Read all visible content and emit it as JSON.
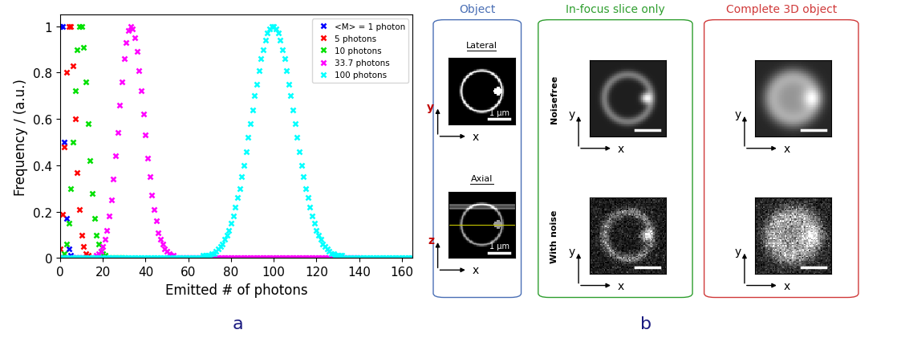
{
  "chart_data": {
    "type": "scatter",
    "x_label": "Emitted # of photons",
    "y_label": "Frequency / (a.u.)",
    "xlim": [
      0,
      165
    ],
    "xticks": [
      0,
      20,
      40,
      60,
      80,
      100,
      120,
      140,
      160
    ],
    "ylim": [
      0,
      1.05
    ],
    "yticks": [
      0,
      0.2,
      0.4,
      0.6,
      0.8,
      1
    ],
    "legend": "upper right",
    "marker": "x",
    "series": [
      {
        "name": "<M> = 1 photon",
        "color": "#0000ff",
        "x": [
          0,
          1,
          2,
          3,
          4,
          5,
          6,
          7,
          8,
          9,
          10
        ],
        "values": [
          1,
          1,
          0.5,
          0.17,
          0.04,
          0.01,
          0,
          0,
          0,
          0,
          0
        ]
      },
      {
        "name": "5 photons",
        "color": "#ff0000",
        "x": [
          0,
          1,
          2,
          3,
          4,
          5,
          6,
          7,
          8,
          9,
          10,
          11,
          12,
          13,
          14,
          15,
          16,
          17,
          18,
          19,
          20
        ],
        "values": [
          0.04,
          0.19,
          0.48,
          0.8,
          1,
          1,
          0.83,
          0.6,
          0.37,
          0.21,
          0.1,
          0.05,
          0.02,
          0.01,
          0,
          0,
          0,
          0,
          0,
          0,
          0
        ]
      },
      {
        "name": "10 photons",
        "color": "#00e000",
        "x": [
          0,
          1,
          2,
          3,
          4,
          5,
          6,
          7,
          8,
          9,
          10,
          11,
          12,
          13,
          14,
          15,
          16,
          17,
          18,
          19,
          20,
          21,
          22,
          23,
          24,
          25,
          26,
          27,
          28,
          29,
          30
        ],
        "values": [
          0,
          0,
          0.02,
          0.06,
          0.15,
          0.3,
          0.5,
          0.72,
          0.9,
          1,
          1,
          0.91,
          0.76,
          0.58,
          0.42,
          0.28,
          0.17,
          0.1,
          0.06,
          0.03,
          0.02,
          0.01,
          0,
          0,
          0,
          0,
          0,
          0,
          0,
          0,
          0
        ]
      },
      {
        "name": "33.7 photons",
        "color": "#ff00ff",
        "x": [
          0,
          1,
          2,
          3,
          4,
          5,
          6,
          7,
          8,
          9,
          10,
          11,
          12,
          13,
          14,
          15,
          16,
          17,
          18,
          19,
          20,
          21,
          22,
          23,
          24,
          25,
          26,
          27,
          28,
          29,
          30,
          31,
          32,
          33,
          34,
          35,
          36,
          37,
          38,
          39,
          40,
          41,
          42,
          43,
          44,
          45,
          46,
          47,
          48,
          49,
          50,
          51,
          52,
          53,
          54,
          55,
          56,
          57,
          58,
          59,
          60,
          61,
          62,
          63,
          64,
          65,
          66,
          67,
          68,
          69,
          70,
          71,
          72,
          73,
          74,
          75,
          76,
          77,
          78,
          79,
          80,
          81,
          82,
          83,
          84,
          85,
          86,
          87,
          88,
          89,
          90,
          91,
          92,
          93,
          94,
          95,
          96,
          97,
          98,
          99,
          100,
          101,
          102,
          103,
          104,
          105,
          106,
          107,
          108,
          109,
          110,
          111,
          112,
          113,
          114,
          115,
          116,
          117,
          118,
          119,
          120,
          121,
          122,
          123,
          124,
          125,
          126,
          127,
          128,
          129,
          130,
          131,
          132,
          133,
          134,
          135,
          136,
          137,
          138,
          139,
          140
        ],
        "values": [
          0,
          0,
          0,
          0,
          0,
          0,
          0,
          0,
          0,
          0,
          0,
          0,
          0,
          0,
          0,
          0,
          0,
          0.01,
          0.02,
          0.03,
          0.05,
          0.08,
          0.12,
          0.18,
          0.25,
          0.34,
          0.44,
          0.54,
          0.66,
          0.76,
          0.86,
          0.93,
          0.98,
          1,
          0.99,
          0.95,
          0.89,
          0.81,
          0.72,
          0.62,
          0.53,
          0.43,
          0.35,
          0.27,
          0.21,
          0.16,
          0.11,
          0.08,
          0.06,
          0.04,
          0.03,
          0.02,
          0.01,
          0.01,
          0,
          0,
          0,
          0,
          0,
          0,
          0,
          0,
          0,
          0,
          0,
          0,
          0,
          0,
          0,
          0,
          0,
          0,
          0,
          0,
          0,
          0,
          0,
          0,
          0,
          0,
          0,
          0,
          0,
          0,
          0,
          0,
          0,
          0,
          0,
          0,
          0,
          0,
          0,
          0,
          0,
          0,
          0,
          0,
          0,
          0,
          0,
          0,
          0,
          0,
          0,
          0,
          0,
          0,
          0,
          0,
          0,
          0,
          0,
          0,
          0,
          0,
          0,
          0,
          0,
          0,
          0,
          0,
          0,
          0,
          0,
          0,
          0,
          0,
          0,
          0,
          0,
          0,
          0,
          0,
          0,
          0,
          0,
          0,
          0,
          0,
          0
        ]
      },
      {
        "name": "100 photons",
        "color": "#00ffff",
        "x": [
          0,
          1,
          2,
          3,
          4,
          5,
          6,
          7,
          8,
          9,
          10,
          11,
          12,
          13,
          14,
          15,
          16,
          17,
          18,
          19,
          20,
          21,
          22,
          23,
          24,
          25,
          26,
          27,
          28,
          29,
          30,
          31,
          32,
          33,
          34,
          35,
          36,
          37,
          38,
          39,
          40,
          41,
          42,
          43,
          44,
          45,
          46,
          47,
          48,
          49,
          50,
          51,
          52,
          53,
          54,
          55,
          56,
          57,
          58,
          59,
          60,
          61,
          62,
          63,
          64,
          65,
          66,
          67,
          68,
          69,
          70,
          71,
          72,
          73,
          74,
          75,
          76,
          77,
          78,
          79,
          80,
          81,
          82,
          83,
          84,
          85,
          86,
          87,
          88,
          89,
          90,
          91,
          92,
          93,
          94,
          95,
          96,
          97,
          98,
          99,
          100,
          101,
          102,
          103,
          104,
          105,
          106,
          107,
          108,
          109,
          110,
          111,
          112,
          113,
          114,
          115,
          116,
          117,
          118,
          119,
          120,
          121,
          122,
          123,
          124,
          125,
          126,
          127,
          128,
          129,
          130,
          131,
          132,
          133,
          134,
          135,
          136,
          137,
          138,
          139,
          140,
          141,
          142,
          143,
          144,
          145,
          146,
          147,
          148,
          149,
          150,
          151,
          152,
          153,
          154,
          155,
          156,
          157,
          158,
          159,
          160,
          161,
          162,
          163,
          164,
          165
        ],
        "values": [
          0,
          0,
          0,
          0,
          0,
          0,
          0,
          0,
          0,
          0,
          0,
          0,
          0,
          0,
          0,
          0,
          0,
          0,
          0,
          0,
          0,
          0,
          0,
          0,
          0,
          0,
          0,
          0,
          0,
          0,
          0,
          0,
          0,
          0,
          0,
          0,
          0,
          0,
          0,
          0,
          0,
          0,
          0,
          0,
          0,
          0,
          0,
          0,
          0,
          0,
          0,
          0,
          0,
          0,
          0,
          0,
          0,
          0,
          0,
          0,
          0,
          0,
          0,
          0,
          0,
          0,
          0,
          0.01,
          0.01,
          0.01,
          0.01,
          0.02,
          0.02,
          0.03,
          0.04,
          0.05,
          0.06,
          0.08,
          0.1,
          0.12,
          0.15,
          0.18,
          0.22,
          0.26,
          0.3,
          0.35,
          0.4,
          0.46,
          0.52,
          0.58,
          0.64,
          0.7,
          0.75,
          0.81,
          0.86,
          0.9,
          0.94,
          0.97,
          0.99,
          1,
          1,
          0.99,
          0.97,
          0.94,
          0.9,
          0.86,
          0.81,
          0.75,
          0.7,
          0.64,
          0.58,
          0.52,
          0.46,
          0.4,
          0.35,
          0.3,
          0.26,
          0.22,
          0.18,
          0.15,
          0.12,
          0.1,
          0.08,
          0.06,
          0.05,
          0.04,
          0.03,
          0.02,
          0.02,
          0.01,
          0.01,
          0.01,
          0.01,
          0,
          0,
          0,
          0,
          0,
          0,
          0,
          0,
          0,
          0,
          0,
          0,
          0,
          0,
          0,
          0,
          0,
          0,
          0,
          0,
          0,
          0,
          0,
          0,
          0,
          0,
          0,
          0,
          0,
          0,
          0,
          0,
          0
        ]
      }
    ]
  },
  "panel_labels": [
    "a",
    "b"
  ],
  "panel_b": {
    "object": {
      "title": "Object",
      "lateral": "Lateral",
      "axial": "Axial",
      "scale_bar": "1 µm",
      "lateral_axes": [
        "x",
        "y"
      ],
      "axial_axes": [
        "x",
        "z"
      ]
    },
    "in_focus": {
      "title": "In-focus slice only"
    },
    "complete": {
      "title": "Complete 3D object"
    },
    "rows": [
      "Noisefree",
      "With noise"
    ],
    "image_axes": [
      "x",
      "y"
    ]
  }
}
